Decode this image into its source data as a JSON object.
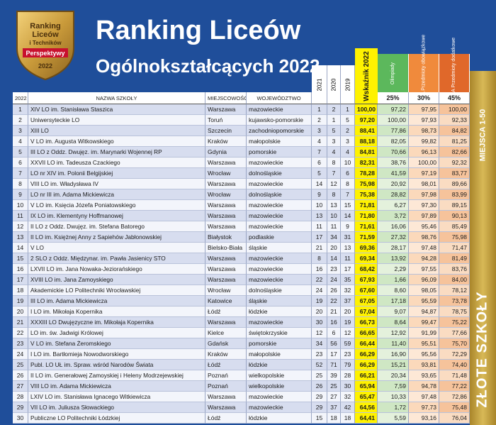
{
  "header": {
    "title_line1": "Ranking Liceów",
    "title_line2": "Ogólnokształcących 2022",
    "logo": {
      "line1": "Ranking",
      "line2": "Liceów",
      "line3": "i Techników",
      "banner": "Perspektywy",
      "year": "2022"
    },
    "side_top": "MIEJSCA 1-50",
    "side_bottom": "ZŁOTE SZKOŁY"
  },
  "table": {
    "columns": [
      "2022",
      "NAZWA SZKOŁY",
      "MIEJSCOWOŚĆ",
      "WOJEWÓDZTWO",
      "2021",
      "2020",
      "2019",
      "Wskaźnik 2022",
      "Olimpiady",
      "MATURA Przedmioty obowiązkowe",
      "MATURA Przedmioty dodatkowe"
    ],
    "weights": [
      "25%",
      "30%",
      "45%"
    ],
    "rows": [
      [
        "1",
        "XIV LO im. Stanisława Staszica",
        "Warszawa",
        "mazowieckie",
        "1",
        "2",
        "1",
        "100,00",
        "97,22",
        "97,95",
        "100,00"
      ],
      [
        "2",
        "Uniwersyteckie LO",
        "Toruń",
        "kujawsko-pomorskie",
        "2",
        "1",
        "5",
        "97,20",
        "100,00",
        "97,93",
        "92,33"
      ],
      [
        "3",
        "XIII LO",
        "Szczecin",
        "zachodniopomorskie",
        "3",
        "5",
        "2",
        "88,41",
        "77,86",
        "98,73",
        "84,82"
      ],
      [
        "4",
        "V LO im. Augusta Witkowskiego",
        "Kraków",
        "małopolskie",
        "4",
        "3",
        "3",
        "88,18",
        "82,05",
        "99,82",
        "81,25"
      ],
      [
        "5",
        "III LO z Oddz. Dwujęz. im. Marynarki Wojennej RP",
        "Gdynia",
        "pomorskie",
        "7",
        "4",
        "4",
        "84,81",
        "70,66",
        "96,13",
        "82,66"
      ],
      [
        "6",
        "XXVII LO im. Tadeusza Czackiego",
        "Warszawa",
        "mazowieckie",
        "6",
        "8",
        "10",
        "82,31",
        "38,76",
        "100,00",
        "92,32"
      ],
      [
        "7",
        "LO nr XIV im. Polonii Belgijskiej",
        "Wrocław",
        "dolnośląskie",
        "5",
        "7",
        "6",
        "78,28",
        "41,59",
        "97,19",
        "83,77"
      ],
      [
        "8",
        "VIII LO im. Władysława IV",
        "Warszawa",
        "mazowieckie",
        "14",
        "12",
        "8",
        "75,98",
        "20,92",
        "98,01",
        "89,66"
      ],
      [
        "9",
        "LO nr III im. Adama Mickiewicza",
        "Wrocław",
        "dolnośląskie",
        "9",
        "8",
        "7",
        "75,38",
        "28,82",
        "97,98",
        "83,99"
      ],
      [
        "10",
        "V LO im. Księcia Józefa Poniatowskiego",
        "Warszawa",
        "mazowieckie",
        "10",
        "13",
        "15",
        "71,81",
        "6,27",
        "97,30",
        "89,15"
      ],
      [
        "11",
        "IX LO im. Klementyny Hoffmanowej",
        "Warszawa",
        "mazowieckie",
        "13",
        "10",
        "14",
        "71,80",
        "3,72",
        "97,89",
        "90,13"
      ],
      [
        "12",
        "II LO z Oddz. Dwujęz. im. Stefana Batorego",
        "Warszawa",
        "mazowieckie",
        "11",
        "11",
        "9",
        "71,61",
        "16,06",
        "95,46",
        "85,49"
      ],
      [
        "13",
        "II LO im. Księżnej Anny z Sapiehów Jabłonowskiej",
        "Białystok",
        "podlaskie",
        "17",
        "34",
        "31",
        "71,59",
        "27,32",
        "98,76",
        "75,98"
      ],
      [
        "14",
        "V LO",
        "Bielsko-Biała",
        "śląskie",
        "21",
        "20",
        "13",
        "69,36",
        "28,17",
        "97,48",
        "71,47"
      ],
      [
        "15",
        "2 SLO z Oddz. Międzynar. im. Pawła Jasienicy STO",
        "Warszawa",
        "mazowieckie",
        "8",
        "14",
        "11",
        "69,34",
        "13,92",
        "94,28",
        "81,49"
      ],
      [
        "16",
        "LXVII LO im. Jana Nowaka-Jeziorańskiego",
        "Warszawa",
        "mazowieckie",
        "16",
        "23",
        "17",
        "68,42",
        "2,29",
        "97,55",
        "83,76"
      ],
      [
        "17",
        "XVIII LO im. Jana Zamoyskiego",
        "Warszawa",
        "mazowieckie",
        "22",
        "24",
        "35",
        "67,93",
        "1,66",
        "96,09",
        "84,00"
      ],
      [
        "18",
        "Akademickie LO Politechniki Wrocławskiej",
        "Wrocław",
        "dolnośląskie",
        "24",
        "26",
        "32",
        "67,60",
        "8,60",
        "98,05",
        "78,12"
      ],
      [
        "19",
        "III LO im. Adama Mickiewicza",
        "Katowice",
        "śląskie",
        "19",
        "22",
        "37",
        "67,05",
        "17,18",
        "95,59",
        "73,78"
      ],
      [
        "20",
        "I LO im. Mikołaja Kopernika",
        "Łódź",
        "łódzkie",
        "20",
        "21",
        "20",
        "67,04",
        "9,07",
        "94,87",
        "78,75"
      ],
      [
        "21",
        "XXXIII LO Dwujęzyczne im. Mikołaja Kopernika",
        "Warszawa",
        "mazowieckie",
        "30",
        "16",
        "19",
        "66,73",
        "8,64",
        "99,47",
        "75,22"
      ],
      [
        "22",
        "LO im. św. Jadwigi Królowej",
        "Kielce",
        "świętokrzyskie",
        "12",
        "6",
        "12",
        "66,65",
        "12,92",
        "91,99",
        "77,66"
      ],
      [
        "23",
        "V LO im. Stefana Żeromskiego",
        "Gdańsk",
        "pomorskie",
        "34",
        "56",
        "59",
        "66,44",
        "11,40",
        "95,51",
        "75,70"
      ],
      [
        "24",
        "I LO im. Bartłomieja Nowodworskiego",
        "Kraków",
        "małopolskie",
        "23",
        "17",
        "23",
        "66,29",
        "16,90",
        "95,56",
        "72,29"
      ],
      [
        "25",
        "Publ. LO UŁ im. Spraw. wśród Narodów Świata",
        "Łódź",
        "łódzkie",
        "52",
        "71",
        "79",
        "66,29",
        "15,21",
        "93,81",
        "74,40"
      ],
      [
        "26",
        "II LO im. Generałowej Zamoyskiej i Heleny Modrzejewskiej",
        "Poznań",
        "wielkopolskie",
        "25",
        "39",
        "28",
        "66,21",
        "20,34",
        "93,65",
        "71,48"
      ],
      [
        "27",
        "VIII LO im. Adama Mickiewicza",
        "Poznań",
        "wielkopolskie",
        "26",
        "25",
        "30",
        "65,94",
        "7,59",
        "94,78",
        "77,22"
      ],
      [
        "28",
        "LXIV LO im. Stanisława Ignacego Witkiewicza",
        "Warszawa",
        "mazowieckie",
        "29",
        "27",
        "32",
        "65,47",
        "10,33",
        "97,48",
        "72,86"
      ],
      [
        "29",
        "VII LO im. Juliusza Słowackiego",
        "Warszawa",
        "mazowieckie",
        "29",
        "37",
        "42",
        "64,56",
        "1,72",
        "97,73",
        "75,48"
      ],
      [
        "30",
        "Publiczne LO Politechniki Łódzkiej",
        "Łódź",
        "łódzkie",
        "15",
        "18",
        "18",
        "64,41",
        "5,59",
        "93,16",
        "76,04"
      ]
    ]
  }
}
